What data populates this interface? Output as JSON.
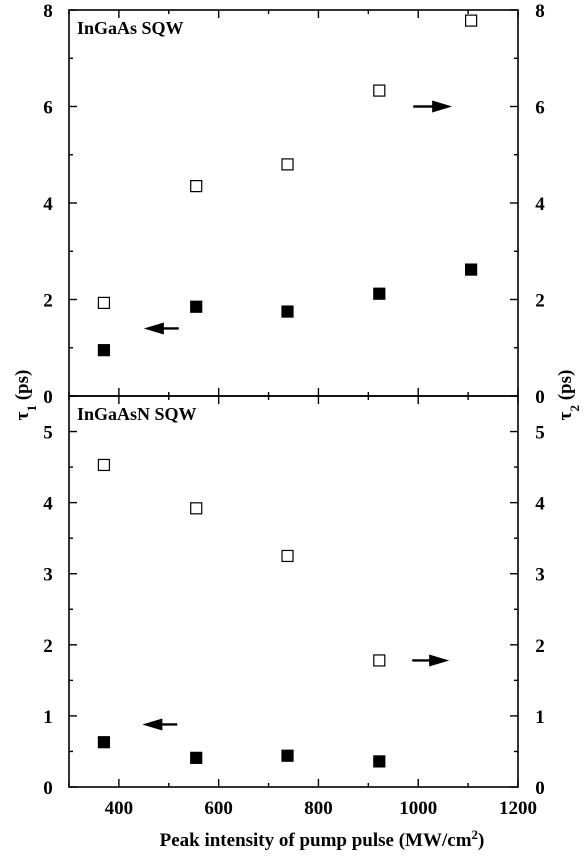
{
  "chart_data": [
    {
      "type": "scatter",
      "title": "InGaAs SQW",
      "xlim": [
        300,
        1200
      ],
      "ylim_left": [
        0,
        8
      ],
      "ylim_right": [
        0,
        8
      ],
      "y_ticks": [
        0,
        2,
        4,
        6,
        8
      ],
      "series": [
        {
          "axis": "left",
          "marker": "filled-square",
          "x": [
            370,
            555,
            738,
            922,
            1106
          ],
          "y": [
            0.95,
            1.85,
            1.75,
            2.12,
            2.62
          ]
        },
        {
          "axis": "right",
          "marker": "open-square",
          "x": [
            370,
            555,
            738,
            922,
            1106
          ],
          "y": [
            1.93,
            4.35,
            4.8,
            6.33,
            7.78
          ]
        }
      ],
      "arrows": [
        {
          "direction": "left",
          "x": [
            520,
            450
          ],
          "y": 1.4
        },
        {
          "direction": "right",
          "x": [
            990,
            1068
          ],
          "y": 6.0
        }
      ],
      "grid": false
    },
    {
      "type": "scatter",
      "title": "InGaAsN SQW",
      "xlim": [
        300,
        1200
      ],
      "ylim_left": [
        0,
        5.5
      ],
      "ylim_right": [
        0,
        5.5
      ],
      "y_ticks": [
        0,
        1,
        2,
        3,
        4,
        5
      ],
      "series": [
        {
          "axis": "left",
          "marker": "filled-square",
          "x": [
            370,
            555,
            738,
            922
          ],
          "y": [
            0.63,
            0.41,
            0.44,
            0.36
          ]
        },
        {
          "axis": "right",
          "marker": "open-square",
          "x": [
            370,
            555,
            738,
            922
          ],
          "y": [
            4.53,
            3.92,
            3.25,
            1.78
          ]
        }
      ],
      "arrows": [
        {
          "direction": "left",
          "x": [
            517,
            447
          ],
          "y": 0.88
        },
        {
          "direction": "right",
          "x": [
            988,
            1062
          ],
          "y": 1.78
        }
      ],
      "grid": false
    }
  ],
  "x_ticks": [
    400,
    600,
    800,
    1000,
    1200
  ],
  "xlabel_text": "Peak intensity of pump pulse (MW/cm",
  "xlabel_sup": "2",
  "xlabel_end": ")",
  "ylabel_left_symbol": "τ",
  "ylabel_left_sub": "1",
  "ylabel_left_unit": " (ps)",
  "ylabel_right_symbol": "τ",
  "ylabel_right_sub": "2",
  "ylabel_right_unit": " (ps)"
}
